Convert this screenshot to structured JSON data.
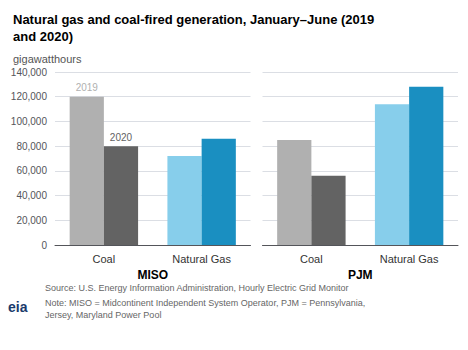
{
  "title": "Natural gas and coal-fired generation, January–June (2019\nand 2020)",
  "subtitle": "gigawatthours",
  "annotations": [
    "Source: U.S. Energy Information Administration, Hourly Electric Grid Monitor",
    "Note: MISO = Midcontinent Independent System Operator, PJM = Pennsylvania,\nJersey, Maryland Power Pool",
    "eia"
  ],
  "chart_data": [
    {
      "type": "bar",
      "x_label": "MISO",
      "categories": [
        "Coal",
        "Natural Gas"
      ],
      "series": [
        {
          "name": "2019",
          "colors": [
            "#b0b0b0",
            "#87ceeb"
          ],
          "values": [
            120000,
            72000
          ]
        },
        {
          "name": "2020",
          "colors": [
            "#636363",
            "#1a8fc1"
          ],
          "values": [
            80000,
            86000
          ]
        }
      ],
      "annotations": [
        "2019",
        "2020"
      ],
      "ylim": [
        0,
        140000
      ],
      "yticks": [
        0,
        {
          "value": 20000,
          "label": "20,000"
        },
        {
          "value": 40000,
          "label": "40,000"
        },
        {
          "value": 60000,
          "label": "60,000"
        },
        {
          "value": 80000,
          "label": "80,000"
        },
        {
          "value": 100000,
          "label": "100,000"
        },
        {
          "value": 120000,
          "label": "120,000"
        },
        {
          "value": 140000,
          "label": "140,000"
        }
      ],
      "grid": true
    },
    {
      "type": "bar",
      "x_label": "PJM",
      "categories": [
        "Coal",
        "Natural Gas"
      ],
      "series": [
        {
          "name": "2019",
          "colors": [
            "#b0b0b0",
            "#87ceeb"
          ],
          "values": [
            85000,
            114000
          ]
        },
        {
          "name": "2020",
          "colors": [
            "#636363",
            "#1a8fc1"
          ],
          "values": [
            56000,
            128000
          ]
        }
      ],
      "ylim": [
        0,
        140000
      ],
      "yticks": [
        0,
        {
          "value": 20000,
          "label": "20,000"
        },
        {
          "value": 40000,
          "label": "40,000"
        },
        {
          "value": 60000,
          "label": "60,000"
        },
        {
          "value": 80000,
          "label": "80,000"
        },
        {
          "value": 100000,
          "label": "100,000"
        },
        {
          "value": 120000,
          "label": "120,000"
        },
        {
          "value": 140000,
          "label": "140,000"
        }
      ],
      "grid": true,
      "tick_labels": "x"
    }
  ]
}
